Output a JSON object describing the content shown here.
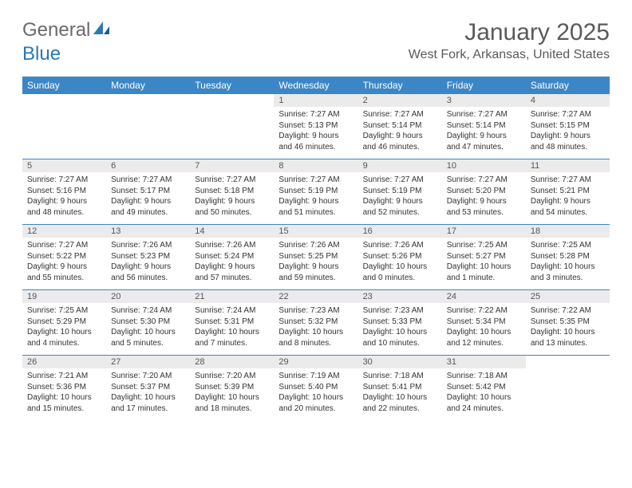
{
  "logo": {
    "word1": "General",
    "word2": "Blue"
  },
  "title": "January 2025",
  "location": "West Fork, Arkansas, United States",
  "colors": {
    "header_bg": "#3d86c6",
    "header_text": "#ffffff",
    "daynum_bg": "#ebebeb",
    "rule": "#3d86c6",
    "logo_gray": "#6a6a6a",
    "logo_blue": "#2a78b8"
  },
  "typography": {
    "title_fontsize": 30,
    "location_fontsize": 16,
    "dayheader_fontsize": 12,
    "daynum_fontsize": 11,
    "body_fontsize": 10
  },
  "day_headers": [
    "Sunday",
    "Monday",
    "Tuesday",
    "Wednesday",
    "Thursday",
    "Friday",
    "Saturday"
  ],
  "weeks": [
    [
      {
        "n": "",
        "text": ""
      },
      {
        "n": "",
        "text": ""
      },
      {
        "n": "",
        "text": ""
      },
      {
        "n": "1",
        "text": "Sunrise: 7:27 AM\nSunset: 5:13 PM\nDaylight: 9 hours and 46 minutes."
      },
      {
        "n": "2",
        "text": "Sunrise: 7:27 AM\nSunset: 5:14 PM\nDaylight: 9 hours and 46 minutes."
      },
      {
        "n": "3",
        "text": "Sunrise: 7:27 AM\nSunset: 5:14 PM\nDaylight: 9 hours and 47 minutes."
      },
      {
        "n": "4",
        "text": "Sunrise: 7:27 AM\nSunset: 5:15 PM\nDaylight: 9 hours and 48 minutes."
      }
    ],
    [
      {
        "n": "5",
        "text": "Sunrise: 7:27 AM\nSunset: 5:16 PM\nDaylight: 9 hours and 48 minutes."
      },
      {
        "n": "6",
        "text": "Sunrise: 7:27 AM\nSunset: 5:17 PM\nDaylight: 9 hours and 49 minutes."
      },
      {
        "n": "7",
        "text": "Sunrise: 7:27 AM\nSunset: 5:18 PM\nDaylight: 9 hours and 50 minutes."
      },
      {
        "n": "8",
        "text": "Sunrise: 7:27 AM\nSunset: 5:19 PM\nDaylight: 9 hours and 51 minutes."
      },
      {
        "n": "9",
        "text": "Sunrise: 7:27 AM\nSunset: 5:19 PM\nDaylight: 9 hours and 52 minutes."
      },
      {
        "n": "10",
        "text": "Sunrise: 7:27 AM\nSunset: 5:20 PM\nDaylight: 9 hours and 53 minutes."
      },
      {
        "n": "11",
        "text": "Sunrise: 7:27 AM\nSunset: 5:21 PM\nDaylight: 9 hours and 54 minutes."
      }
    ],
    [
      {
        "n": "12",
        "text": "Sunrise: 7:27 AM\nSunset: 5:22 PM\nDaylight: 9 hours and 55 minutes."
      },
      {
        "n": "13",
        "text": "Sunrise: 7:26 AM\nSunset: 5:23 PM\nDaylight: 9 hours and 56 minutes."
      },
      {
        "n": "14",
        "text": "Sunrise: 7:26 AM\nSunset: 5:24 PM\nDaylight: 9 hours and 57 minutes."
      },
      {
        "n": "15",
        "text": "Sunrise: 7:26 AM\nSunset: 5:25 PM\nDaylight: 9 hours and 59 minutes."
      },
      {
        "n": "16",
        "text": "Sunrise: 7:26 AM\nSunset: 5:26 PM\nDaylight: 10 hours and 0 minutes."
      },
      {
        "n": "17",
        "text": "Sunrise: 7:25 AM\nSunset: 5:27 PM\nDaylight: 10 hours and 1 minute."
      },
      {
        "n": "18",
        "text": "Sunrise: 7:25 AM\nSunset: 5:28 PM\nDaylight: 10 hours and 3 minutes."
      }
    ],
    [
      {
        "n": "19",
        "text": "Sunrise: 7:25 AM\nSunset: 5:29 PM\nDaylight: 10 hours and 4 minutes."
      },
      {
        "n": "20",
        "text": "Sunrise: 7:24 AM\nSunset: 5:30 PM\nDaylight: 10 hours and 5 minutes."
      },
      {
        "n": "21",
        "text": "Sunrise: 7:24 AM\nSunset: 5:31 PM\nDaylight: 10 hours and 7 minutes."
      },
      {
        "n": "22",
        "text": "Sunrise: 7:23 AM\nSunset: 5:32 PM\nDaylight: 10 hours and 8 minutes."
      },
      {
        "n": "23",
        "text": "Sunrise: 7:23 AM\nSunset: 5:33 PM\nDaylight: 10 hours and 10 minutes."
      },
      {
        "n": "24",
        "text": "Sunrise: 7:22 AM\nSunset: 5:34 PM\nDaylight: 10 hours and 12 minutes."
      },
      {
        "n": "25",
        "text": "Sunrise: 7:22 AM\nSunset: 5:35 PM\nDaylight: 10 hours and 13 minutes."
      }
    ],
    [
      {
        "n": "26",
        "text": "Sunrise: 7:21 AM\nSunset: 5:36 PM\nDaylight: 10 hours and 15 minutes."
      },
      {
        "n": "27",
        "text": "Sunrise: 7:20 AM\nSunset: 5:37 PM\nDaylight: 10 hours and 17 minutes."
      },
      {
        "n": "28",
        "text": "Sunrise: 7:20 AM\nSunset: 5:39 PM\nDaylight: 10 hours and 18 minutes."
      },
      {
        "n": "29",
        "text": "Sunrise: 7:19 AM\nSunset: 5:40 PM\nDaylight: 10 hours and 20 minutes."
      },
      {
        "n": "30",
        "text": "Sunrise: 7:18 AM\nSunset: 5:41 PM\nDaylight: 10 hours and 22 minutes."
      },
      {
        "n": "31",
        "text": "Sunrise: 7:18 AM\nSunset: 5:42 PM\nDaylight: 10 hours and 24 minutes."
      },
      {
        "n": "",
        "text": ""
      }
    ]
  ]
}
